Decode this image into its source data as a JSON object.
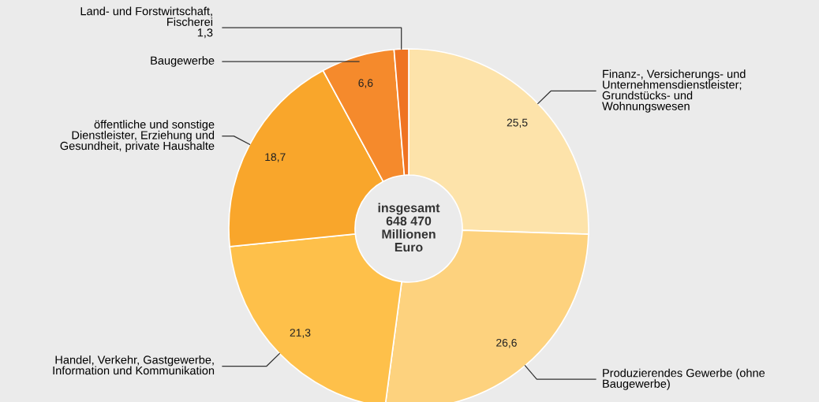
{
  "chart_data": {
    "type": "donut",
    "categories": [
      "Finanz-, Versicherungs- und\nUnternehmensdienstleister;\nGrundstücks- und\nWohnungswesen",
      "Produzierendes Gewerbe (ohne\nBaugewerbe)",
      "Handel, Verkehr, Gastgewerbe,\nInformation und Kommunikation",
      "öffentliche und sonstige\nDienstleister, Erziehung und\nGesundheit, private Haushalte",
      "Baugewerbe",
      "Land- und Forstwirtschaft,\nFischerei"
    ],
    "values": [
      25.5,
      26.6,
      21.3,
      18.7,
      6.6,
      1.3
    ],
    "value_labels": [
      "25,5",
      "26,6",
      "21,3",
      "18,7",
      "6,6",
      "1,3"
    ],
    "colors": [
      "#fde3aa",
      "#fdd27e",
      "#fec04a",
      "#f9a62b",
      "#f58a2c",
      "#ef7322"
    ],
    "annotations": [
      "insgesamt\n648 470\nMillionen\nEuro"
    ],
    "legend": false
  }
}
